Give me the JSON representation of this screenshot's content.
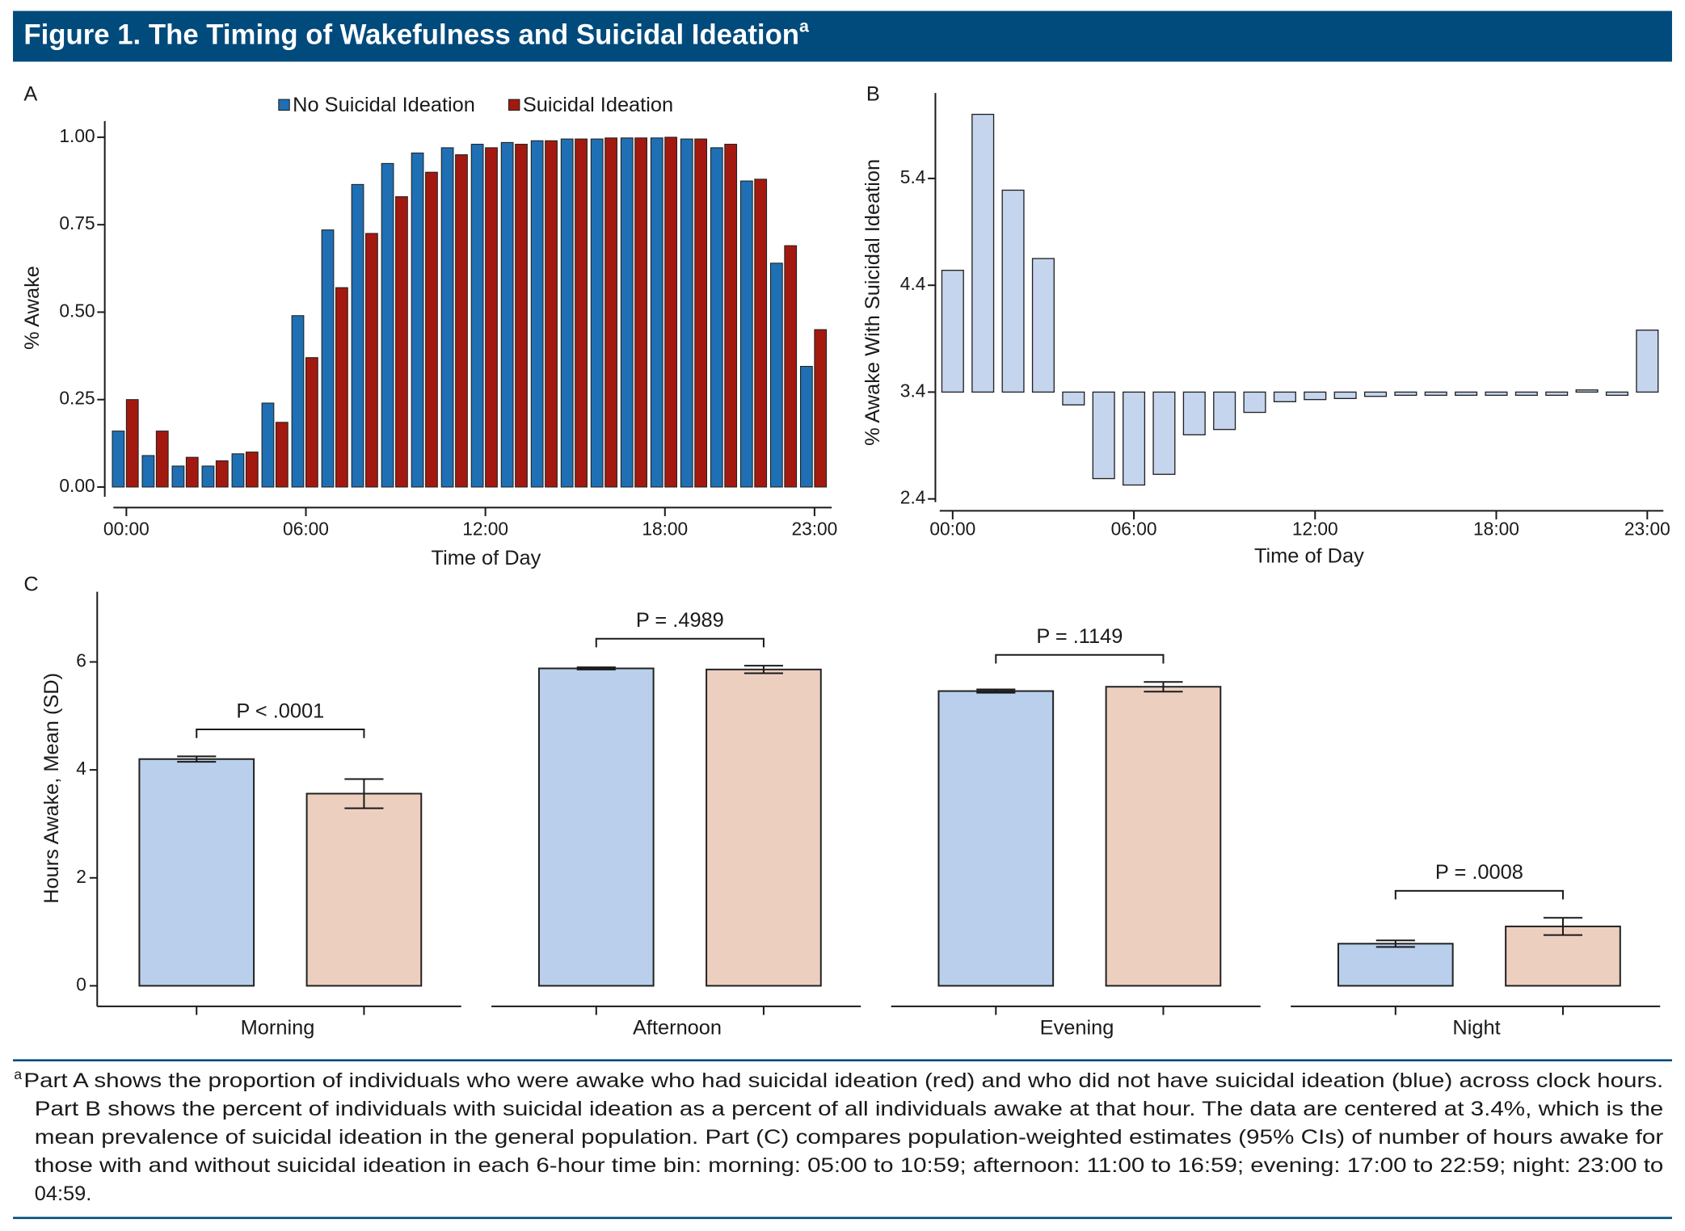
{
  "header": {
    "title": "Figure 1. The Timing of Wakefulness and Suicidal Ideation",
    "note_mark": "a"
  },
  "chart_data": [
    {
      "type": "bar",
      "panel": "A",
      "ylabel": "% Awake",
      "xlabel": "Time of Day",
      "categories": [
        "00:00",
        null,
        null,
        null,
        null,
        null,
        "06:00",
        null,
        null,
        null,
        null,
        null,
        "12:00",
        null,
        null,
        null,
        null,
        null,
        "18:00",
        null,
        null,
        null,
        null,
        "23:00"
      ],
      "series": [
        {
          "name": "No Suicidal Ideation",
          "color": "#1f6fb4",
          "values": [
            0.16,
            0.09,
            0.06,
            0.06,
            0.095,
            0.24,
            0.49,
            0.735,
            0.865,
            0.925,
            0.955,
            0.97,
            0.98,
            0.985,
            0.99,
            0.995,
            0.995,
            0.998,
            0.998,
            0.995,
            0.97,
            0.875,
            0.64,
            0.345
          ]
        },
        {
          "name": "Suicidal Ideation",
          "color": "#a3190f",
          "values": [
            0.25,
            0.16,
            0.085,
            0.075,
            0.1,
            0.185,
            0.37,
            0.57,
            0.725,
            0.83,
            0.9,
            0.95,
            0.97,
            0.98,
            0.99,
            0.995,
            0.998,
            0.998,
            1.0,
            0.995,
            0.98,
            0.88,
            0.69,
            0.45
          ]
        }
      ],
      "ylim": [
        0,
        1
      ],
      "yticks": [
        {
          "value": 0,
          "label": "0.00"
        },
        {
          "value": 0.25,
          "label": "0.25"
        },
        {
          "value": 0.5,
          "label": "0.50"
        },
        {
          "value": 0.75,
          "label": "0.75"
        },
        {
          "value": 1,
          "label": "1.00"
        }
      ],
      "legend": "top"
    },
    {
      "type": "bar",
      "panel": "B",
      "ylabel": "% Awake With Suicidal Ideation",
      "xlabel": "Time of Day",
      "categories": [
        "00:00",
        null,
        null,
        null,
        null,
        null,
        "06:00",
        null,
        null,
        null,
        null,
        null,
        "12:00",
        null,
        null,
        null,
        null,
        null,
        "18:00",
        null,
        null,
        null,
        null,
        "23:00"
      ],
      "values": [
        4.54,
        6.0,
        5.29,
        4.65,
        3.28,
        2.59,
        2.53,
        2.63,
        3.0,
        3.05,
        3.21,
        3.31,
        3.33,
        3.34,
        3.36,
        3.37,
        3.37,
        3.37,
        3.37,
        3.37,
        3.37,
        3.42,
        3.37,
        3.98
      ],
      "base": 3.4,
      "color": "#c5d5ee",
      "ylim": [
        2.4,
        6.2
      ],
      "yticks": [
        2.4,
        3.4,
        4.4,
        5.4
      ]
    },
    {
      "type": "bar",
      "panel": "C",
      "ylabel": "Hours Awake, Mean (SD)",
      "categories": [
        "Morning",
        "Afternoon",
        "Evening",
        "Night"
      ],
      "series": [
        {
          "color": "#b9cfeb",
          "values": [
            4.2,
            5.88,
            5.46,
            0.78
          ],
          "errors": [
            0.05,
            0.02,
            0.03,
            0.06
          ]
        },
        {
          "color": "#edcfc0",
          "values": [
            3.56,
            5.86,
            5.54,
            1.1
          ],
          "errors": [
            0.27,
            0.07,
            0.09,
            0.16
          ]
        }
      ],
      "annotations": [
        "P < .0001",
        "P = .4989",
        "P = .1149",
        "P = .0008"
      ],
      "ylim": [
        0,
        7.3
      ],
      "yticks": [
        0,
        2,
        4,
        6
      ]
    }
  ],
  "footnote": {
    "mark": "a",
    "lines": [
      "Part A shows the proportion of individuals who were awake who had suicidal ideation (red) and who did not have suicidal ideation (blue) across clock hours.",
      "Part B shows the percent of individuals with suicidal ideation as a percent of all individuals awake at that hour. The data are centered at 3.4%, which is the",
      "mean prevalence of suicidal ideation in the general population. Part (C) compares population-weighted estimates (95% CIs) of  number of hours awake for",
      "those with and without suicidal ideation in each 6-hour time bin: morning: 05:00 to 10:59; afternoon: 11:00 to 16:59; evening: 17:00 to 22:59; night: 23:00 to",
      "04:59."
    ]
  }
}
